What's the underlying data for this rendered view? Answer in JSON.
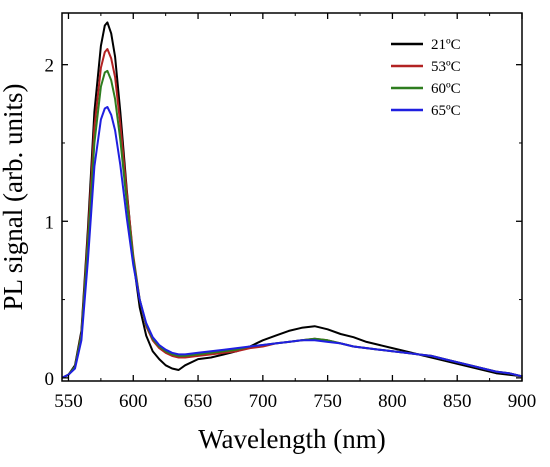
{
  "chart_data": {
    "type": "line",
    "title": "",
    "xlabel": "Wavelength (nm)",
    "ylabel": "PL signal (arb. units)",
    "xlim": [
      545,
      900
    ],
    "ylim": [
      -0.02,
      2.33
    ],
    "xticks": [
      550,
      600,
      650,
      700,
      750,
      800,
      850,
      900
    ],
    "yticks": [
      0,
      1,
      2
    ],
    "grid": false,
    "legend_position": "top-right",
    "series": [
      {
        "name": "21ºC",
        "color": "#000000",
        "x": [
          545,
          550,
          555,
          560,
          565,
          570,
          575,
          578,
          580,
          583,
          586,
          590,
          595,
          600,
          605,
          610,
          615,
          620,
          625,
          630,
          635,
          640,
          650,
          660,
          670,
          680,
          690,
          700,
          710,
          720,
          730,
          740,
          750,
          760,
          770,
          780,
          790,
          800,
          810,
          820,
          830,
          840,
          850,
          860,
          870,
          880,
          890,
          900
        ],
        "y": [
          0.0,
          0.02,
          0.08,
          0.3,
          0.95,
          1.7,
          2.12,
          2.25,
          2.27,
          2.2,
          2.05,
          1.7,
          1.2,
          0.75,
          0.45,
          0.27,
          0.17,
          0.12,
          0.08,
          0.06,
          0.05,
          0.08,
          0.12,
          0.13,
          0.15,
          0.17,
          0.2,
          0.24,
          0.27,
          0.3,
          0.32,
          0.33,
          0.31,
          0.28,
          0.26,
          0.23,
          0.21,
          0.19,
          0.17,
          0.15,
          0.13,
          0.11,
          0.09,
          0.07,
          0.05,
          0.03,
          0.02,
          0.01
        ]
      },
      {
        "name": "53ºC",
        "color": "#b22222",
        "x": [
          545,
          550,
          555,
          560,
          565,
          570,
          575,
          578,
          580,
          583,
          586,
          590,
          595,
          600,
          605,
          610,
          615,
          620,
          625,
          630,
          635,
          640,
          650,
          660,
          670,
          680,
          690,
          700,
          710,
          720,
          730,
          740,
          750,
          760,
          770,
          780,
          790,
          800,
          810,
          820,
          830,
          840,
          850,
          860,
          870,
          880,
          890,
          900
        ],
        "y": [
          0.0,
          0.02,
          0.07,
          0.28,
          0.9,
          1.6,
          1.98,
          2.08,
          2.1,
          2.04,
          1.92,
          1.62,
          1.18,
          0.78,
          0.5,
          0.33,
          0.24,
          0.19,
          0.16,
          0.14,
          0.13,
          0.13,
          0.14,
          0.15,
          0.16,
          0.17,
          0.19,
          0.2,
          0.22,
          0.23,
          0.24,
          0.25,
          0.24,
          0.22,
          0.2,
          0.19,
          0.18,
          0.17,
          0.16,
          0.15,
          0.14,
          0.12,
          0.1,
          0.08,
          0.06,
          0.04,
          0.03,
          0.01
        ]
      },
      {
        "name": "60ºC",
        "color": "#2e7d1f",
        "x": [
          545,
          550,
          555,
          560,
          565,
          570,
          575,
          578,
          580,
          583,
          586,
          590,
          595,
          600,
          605,
          610,
          615,
          620,
          625,
          630,
          635,
          640,
          650,
          660,
          670,
          680,
          690,
          700,
          710,
          720,
          730,
          740,
          750,
          760,
          770,
          780,
          790,
          800,
          810,
          820,
          830,
          840,
          850,
          860,
          870,
          880,
          890,
          900
        ],
        "y": [
          0.0,
          0.02,
          0.07,
          0.27,
          0.85,
          1.5,
          1.86,
          1.95,
          1.96,
          1.9,
          1.78,
          1.52,
          1.12,
          0.76,
          0.5,
          0.34,
          0.25,
          0.2,
          0.17,
          0.15,
          0.14,
          0.14,
          0.15,
          0.16,
          0.17,
          0.18,
          0.2,
          0.21,
          0.22,
          0.23,
          0.24,
          0.25,
          0.24,
          0.22,
          0.2,
          0.19,
          0.18,
          0.17,
          0.16,
          0.15,
          0.14,
          0.12,
          0.1,
          0.08,
          0.06,
          0.04,
          0.03,
          0.01
        ]
      },
      {
        "name": "65ºC",
        "color": "#1f1fe0",
        "x": [
          545,
          550,
          555,
          560,
          565,
          570,
          575,
          578,
          580,
          583,
          586,
          590,
          595,
          600,
          605,
          610,
          615,
          620,
          625,
          630,
          635,
          640,
          650,
          660,
          670,
          680,
          690,
          700,
          710,
          720,
          730,
          740,
          750,
          760,
          770,
          780,
          790,
          800,
          810,
          820,
          830,
          840,
          850,
          860,
          870,
          880,
          890,
          900
        ],
        "y": [
          0.0,
          0.02,
          0.06,
          0.24,
          0.75,
          1.35,
          1.65,
          1.72,
          1.73,
          1.68,
          1.58,
          1.36,
          1.02,
          0.72,
          0.5,
          0.35,
          0.26,
          0.21,
          0.18,
          0.16,
          0.15,
          0.15,
          0.16,
          0.17,
          0.18,
          0.19,
          0.2,
          0.21,
          0.22,
          0.23,
          0.24,
          0.24,
          0.23,
          0.22,
          0.2,
          0.19,
          0.18,
          0.17,
          0.16,
          0.15,
          0.14,
          0.12,
          0.1,
          0.08,
          0.06,
          0.04,
          0.03,
          0.01
        ]
      }
    ]
  }
}
